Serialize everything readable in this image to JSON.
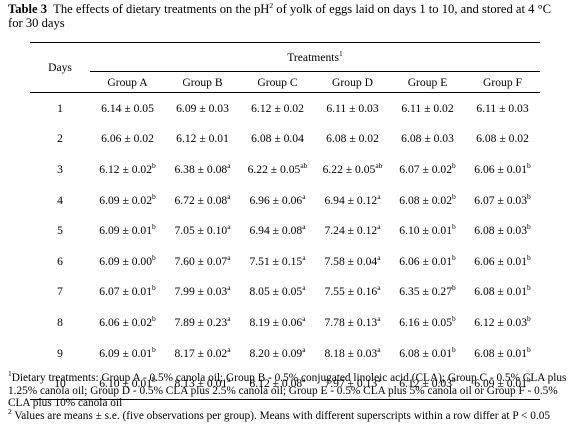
{
  "caption": {
    "label": "Table 3",
    "text_a": "The effects of dietary treatments on the pH",
    "sup": "2",
    "text_b": " of yolk of eggs laid on days 1 to 10, and stored at 4 °C",
    "text_c": "for 30 days"
  },
  "table": {
    "days_header": "Days",
    "treatments_header": "Treatments",
    "treatments_sup": "1",
    "groups": [
      "Group A",
      "Group B",
      "Group C",
      "Group D",
      "Group E",
      "Group F"
    ],
    "rows": [
      {
        "day": "1",
        "cells": [
          {
            "v": "6.14 ± 0.05",
            "s": ""
          },
          {
            "v": "6.09 ± 0.03",
            "s": ""
          },
          {
            "v": "6.12 ± 0.02",
            "s": ""
          },
          {
            "v": "6.11 ± 0.03",
            "s": ""
          },
          {
            "v": "6.11 ± 0.02",
            "s": ""
          },
          {
            "v": "6.11 ± 0.03",
            "s": ""
          }
        ]
      },
      {
        "day": "2",
        "cells": [
          {
            "v": "6.06 ± 0.02",
            "s": ""
          },
          {
            "v": "6.12 ± 0.01",
            "s": ""
          },
          {
            "v": "6.08 ± 0.04",
            "s": ""
          },
          {
            "v": "6.08 ± 0.02",
            "s": ""
          },
          {
            "v": "6.08 ± 0.03",
            "s": ""
          },
          {
            "v": "6.08 ± 0.02",
            "s": ""
          }
        ]
      },
      {
        "day": "3",
        "cells": [
          {
            "v": "6.12 ± 0.02",
            "s": "b"
          },
          {
            "v": "6.38 ± 0.08",
            "s": "a"
          },
          {
            "v": "6.22 ± 0.05",
            "s": "ab"
          },
          {
            "v": "6.22 ± 0.05",
            "s": "ab"
          },
          {
            "v": "6.07 ± 0.02",
            "s": "b"
          },
          {
            "v": "6.06 ± 0.01",
            "s": "b"
          }
        ]
      },
      {
        "day": "4",
        "cells": [
          {
            "v": "6.09 ± 0.02",
            "s": "b"
          },
          {
            "v": "6.72 ± 0.08",
            "s": "a"
          },
          {
            "v": "6.96 ± 0.06",
            "s": "a"
          },
          {
            "v": "6.94 ± 0.12",
            "s": "a"
          },
          {
            "v": "6.08 ± 0.02",
            "s": "b"
          },
          {
            "v": "6.07 ± 0.03",
            "s": "b"
          }
        ]
      },
      {
        "day": "5",
        "cells": [
          {
            "v": "6.09 ± 0.01",
            "s": "b"
          },
          {
            "v": "7.05 ± 0.10",
            "s": "a"
          },
          {
            "v": "6.94 ± 0.08",
            "s": "a"
          },
          {
            "v": "7.24 ± 0.12",
            "s": "a"
          },
          {
            "v": "6.10 ± 0.01",
            "s": "b"
          },
          {
            "v": "6.08 ± 0.03",
            "s": "b"
          }
        ]
      },
      {
        "day": "6",
        "cells": [
          {
            "v": "6.09 ± 0.00",
            "s": "b"
          },
          {
            "v": "7.60 ± 0.07",
            "s": "a"
          },
          {
            "v": "7.51 ± 0.15",
            "s": "a"
          },
          {
            "v": "7.58 ± 0.04",
            "s": "a"
          },
          {
            "v": "6.06 ± 0.01",
            "s": "b"
          },
          {
            "v": "6.06 ± 0.01",
            "s": "b"
          }
        ]
      },
      {
        "day": "7",
        "cells": [
          {
            "v": "6.07 ± 0.01",
            "s": "b"
          },
          {
            "v": "7.99 ± 0.03",
            "s": "a"
          },
          {
            "v": "8.05 ± 0.05",
            "s": "a"
          },
          {
            "v": "7.55 ± 0.16",
            "s": "a"
          },
          {
            "v": "6.35 ± 0.27",
            "s": "b"
          },
          {
            "v": "6.08 ± 0.01",
            "s": "b"
          }
        ]
      },
      {
        "day": "8",
        "cells": [
          {
            "v": "6.06 ± 0.02",
            "s": "b"
          },
          {
            "v": "7.89 ± 0.23",
            "s": "a"
          },
          {
            "v": "8.19 ± 0.06",
            "s": "a"
          },
          {
            "v": "7.78 ± 0.13",
            "s": "a"
          },
          {
            "v": "6.16 ± 0.05",
            "s": "b"
          },
          {
            "v": "6.12 ± 0.03",
            "s": "b"
          }
        ]
      },
      {
        "day": "9",
        "cells": [
          {
            "v": "6.09 ± 0.01",
            "s": "b"
          },
          {
            "v": "8.17 ± 0.02",
            "s": "a"
          },
          {
            "v": "8.20 ± 0.09",
            "s": "a"
          },
          {
            "v": "8.18 ± 0.03",
            "s": "a"
          },
          {
            "v": "6.08 ± 0.01",
            "s": "b"
          },
          {
            "v": "6.08 ± 0.01",
            "s": "b"
          }
        ]
      },
      {
        "day": "10",
        "cells": [
          {
            "v": "6.10 ± 0.01",
            "s": "b"
          },
          {
            "v": "8.13 ± 0.01",
            "s": "a"
          },
          {
            "v": "8.12 ± 0.08",
            "s": "a"
          },
          {
            "v": "7.97 ± 0.13",
            "s": "a"
          },
          {
            "v": "6.12 ± 0.03",
            "s": "b"
          },
          {
            "v": "6.09 ± 0.01",
            "s": "b"
          }
        ]
      }
    ]
  },
  "footnotes": {
    "n1_sup": "1",
    "n1_text": "Dietary treatments: Group A - 0.5% canola oil; Group B - 0.5% conjugated linoleic acid (CLA); Group C - 0.5% CLA plus 1.25% canola oil; Group D - 0.5% CLA plus 2.5% canola oil; Group E - 0.5% CLA plus 5% canola oil or Group F - 0.5% CLA plus 10% canola oil",
    "n2_sup": "2",
    "n2_text": " Values are means ± s.e. (five observations per group). Means with different superscripts within a row differ at P < 0.05"
  }
}
